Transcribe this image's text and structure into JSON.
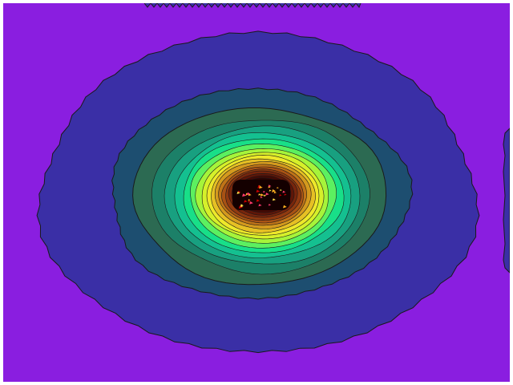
{
  "image": {
    "kind": "filled-contour-render",
    "background_color": "#ffffff",
    "contour_levels": 22,
    "line_color": "#1a1a1a",
    "palette": [
      "#8a1ee0",
      "#3a2fa6",
      "#1d4e70",
      "#2c6a52",
      "#1c8068",
      "#18a080",
      "#14c090",
      "#18df88",
      "#5cf060",
      "#a6f43a",
      "#d6f02a",
      "#eee82a",
      "#e6c024",
      "#d49a1e",
      "#c07418",
      "#a85214",
      "#903a10",
      "#78260c",
      "#5e1608",
      "#440a04",
      "#2a0402",
      "#140000"
    ],
    "speckle_colors": [
      "#ff3b6e",
      "#ffb020",
      "#ffe14a",
      "#c80000"
    ]
  }
}
